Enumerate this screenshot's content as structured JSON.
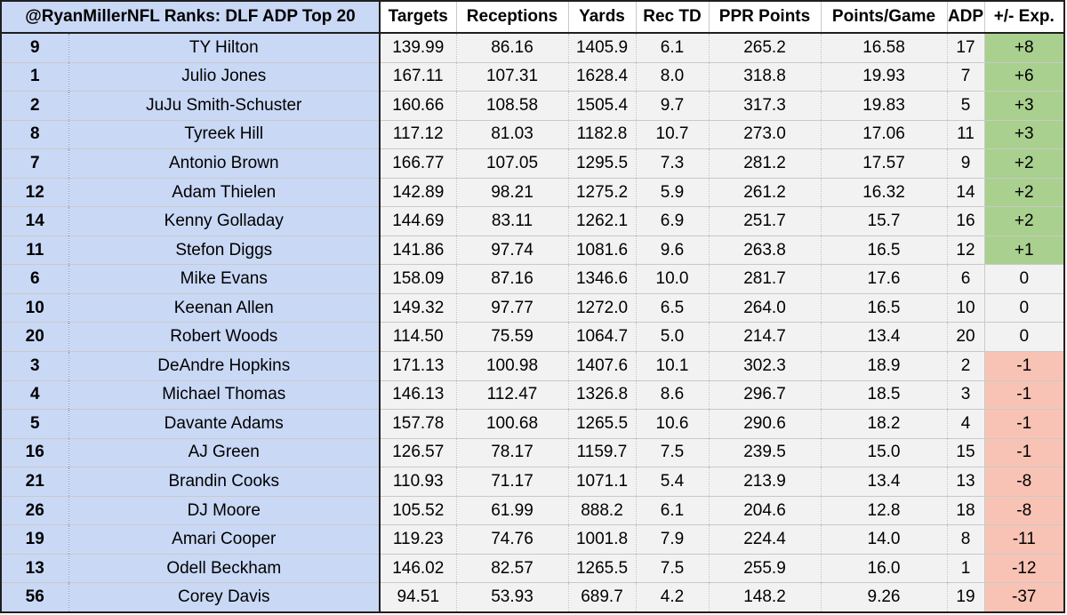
{
  "table": {
    "title": "@RyanMillerNFL Ranks: DLF ADP Top 20",
    "columns": [
      "Targets",
      "Receptions",
      "Yards",
      "Rec TD",
      "PPR Points",
      "Points/Game",
      "ADP",
      "+/- Exp."
    ],
    "diff_colors": {
      "positive": "#a9d08e",
      "negative": "#f8c3b5",
      "neutral": "#f2f2f2"
    },
    "rows": [
      {
        "rank": "9",
        "player": "TY Hilton",
        "targets": "139.99",
        "receptions": "86.16",
        "yards": "1405.9",
        "rec_td": "6.1",
        "ppr": "265.2",
        "ppg": "16.58",
        "adp": "17",
        "diff": "+8",
        "sign": "pos"
      },
      {
        "rank": "1",
        "player": "Julio Jones",
        "targets": "167.11",
        "receptions": "107.31",
        "yards": "1628.4",
        "rec_td": "8.0",
        "ppr": "318.8",
        "ppg": "19.93",
        "adp": "7",
        "diff": "+6",
        "sign": "pos"
      },
      {
        "rank": "2",
        "player": "JuJu Smith-Schuster",
        "targets": "160.66",
        "receptions": "108.58",
        "yards": "1505.4",
        "rec_td": "9.7",
        "ppr": "317.3",
        "ppg": "19.83",
        "adp": "5",
        "diff": "+3",
        "sign": "pos"
      },
      {
        "rank": "8",
        "player": "Tyreek Hill",
        "targets": "117.12",
        "receptions": "81.03",
        "yards": "1182.8",
        "rec_td": "10.7",
        "ppr": "273.0",
        "ppg": "17.06",
        "adp": "11",
        "diff": "+3",
        "sign": "pos"
      },
      {
        "rank": "7",
        "player": "Antonio Brown",
        "targets": "166.77",
        "receptions": "107.05",
        "yards": "1295.5",
        "rec_td": "7.3",
        "ppr": "281.2",
        "ppg": "17.57",
        "adp": "9",
        "diff": "+2",
        "sign": "pos"
      },
      {
        "rank": "12",
        "player": "Adam Thielen",
        "targets": "142.89",
        "receptions": "98.21",
        "yards": "1275.2",
        "rec_td": "5.9",
        "ppr": "261.2",
        "ppg": "16.32",
        "adp": "14",
        "diff": "+2",
        "sign": "pos"
      },
      {
        "rank": "14",
        "player": "Kenny Golladay",
        "targets": "144.69",
        "receptions": "83.11",
        "yards": "1262.1",
        "rec_td": "6.9",
        "ppr": "251.7",
        "ppg": "15.7",
        "adp": "16",
        "diff": "+2",
        "sign": "pos"
      },
      {
        "rank": "11",
        "player": "Stefon Diggs",
        "targets": "141.86",
        "receptions": "97.74",
        "yards": "1081.6",
        "rec_td": "9.6",
        "ppr": "263.8",
        "ppg": "16.5",
        "adp": "12",
        "diff": "+1",
        "sign": "pos"
      },
      {
        "rank": "6",
        "player": "Mike Evans",
        "targets": "158.09",
        "receptions": "87.16",
        "yards": "1346.6",
        "rec_td": "10.0",
        "ppr": "281.7",
        "ppg": "17.6",
        "adp": "6",
        "diff": "0",
        "sign": "zero"
      },
      {
        "rank": "10",
        "player": "Keenan Allen",
        "targets": "149.32",
        "receptions": "97.77",
        "yards": "1272.0",
        "rec_td": "6.5",
        "ppr": "264.0",
        "ppg": "16.5",
        "adp": "10",
        "diff": "0",
        "sign": "zero"
      },
      {
        "rank": "20",
        "player": "Robert Woods",
        "targets": "114.50",
        "receptions": "75.59",
        "yards": "1064.7",
        "rec_td": "5.0",
        "ppr": "214.7",
        "ppg": "13.4",
        "adp": "20",
        "diff": "0",
        "sign": "zero"
      },
      {
        "rank": "3",
        "player": "DeAndre Hopkins",
        "targets": "171.13",
        "receptions": "100.98",
        "yards": "1407.6",
        "rec_td": "10.1",
        "ppr": "302.3",
        "ppg": "18.9",
        "adp": "2",
        "diff": "-1",
        "sign": "neg"
      },
      {
        "rank": "4",
        "player": "Michael Thomas",
        "targets": "146.13",
        "receptions": "112.47",
        "yards": "1326.8",
        "rec_td": "8.6",
        "ppr": "296.7",
        "ppg": "18.5",
        "adp": "3",
        "diff": "-1",
        "sign": "neg"
      },
      {
        "rank": "5",
        "player": "Davante Adams",
        "targets": "157.78",
        "receptions": "100.68",
        "yards": "1265.5",
        "rec_td": "10.6",
        "ppr": "290.6",
        "ppg": "18.2",
        "adp": "4",
        "diff": "-1",
        "sign": "neg"
      },
      {
        "rank": "16",
        "player": "AJ Green",
        "targets": "126.57",
        "receptions": "78.17",
        "yards": "1159.7",
        "rec_td": "7.5",
        "ppr": "239.5",
        "ppg": "15.0",
        "adp": "15",
        "diff": "-1",
        "sign": "neg"
      },
      {
        "rank": "21",
        "player": "Brandin Cooks",
        "targets": "110.93",
        "receptions": "71.17",
        "yards": "1071.1",
        "rec_td": "5.4",
        "ppr": "213.9",
        "ppg": "13.4",
        "adp": "13",
        "diff": "-8",
        "sign": "neg"
      },
      {
        "rank": "26",
        "player": "DJ Moore",
        "targets": "105.52",
        "receptions": "61.99",
        "yards": "888.2",
        "rec_td": "6.1",
        "ppr": "204.6",
        "ppg": "12.8",
        "adp": "18",
        "diff": "-8",
        "sign": "neg"
      },
      {
        "rank": "19",
        "player": "Amari Cooper",
        "targets": "119.23",
        "receptions": "74.76",
        "yards": "1001.8",
        "rec_td": "7.9",
        "ppr": "224.4",
        "ppg": "14.0",
        "adp": "8",
        "diff": "-11",
        "sign": "neg"
      },
      {
        "rank": "13",
        "player": "Odell Beckham",
        "targets": "146.02",
        "receptions": "82.57",
        "yards": "1265.5",
        "rec_td": "7.5",
        "ppr": "255.9",
        "ppg": "16.0",
        "adp": "1",
        "diff": "-12",
        "sign": "neg"
      },
      {
        "rank": "56",
        "player": "Corey Davis",
        "targets": "94.51",
        "receptions": "53.93",
        "yards": "689.7",
        "rec_td": "4.2",
        "ppr": "148.2",
        "ppg": "9.26",
        "adp": "19",
        "diff": "-37",
        "sign": "neg"
      }
    ]
  }
}
